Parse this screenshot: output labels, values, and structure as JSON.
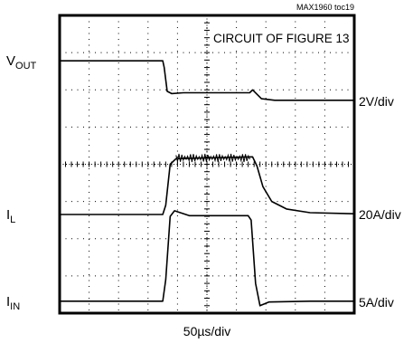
{
  "chart_data": {
    "type": "line",
    "figure_id": "MAX1960 toc19",
    "annotation": "CIRCUIT OF FIGURE 13",
    "xlabel": "50µs/div",
    "grid": true,
    "x_divisions": 10,
    "y_divisions": 8,
    "x_unit": "div",
    "traces": [
      {
        "name_main": "V",
        "name_sub": "OUT",
        "scale": "2V/div",
        "values": [
          [
            0,
            6.78
          ],
          [
            3.5,
            6.78
          ],
          [
            3.55,
            6.6
          ],
          [
            3.65,
            5.96
          ],
          [
            3.8,
            5.9
          ],
          [
            4.2,
            5.92
          ],
          [
            6.45,
            5.92
          ],
          [
            6.55,
            6.0
          ],
          [
            6.85,
            5.76
          ],
          [
            7.3,
            5.72
          ],
          [
            10,
            5.72
          ]
        ]
      },
      {
        "name_main": "I",
        "name_sub": "L",
        "scale": "20A/div",
        "values": [
          [
            0,
            2.65
          ],
          [
            3.5,
            2.65
          ],
          [
            3.6,
            2.9
          ],
          [
            3.75,
            4.0
          ],
          [
            3.95,
            4.15
          ],
          [
            6.55,
            4.2
          ],
          [
            6.7,
            3.95
          ],
          [
            6.9,
            3.4
          ],
          [
            7.2,
            3.0
          ],
          [
            7.7,
            2.8
          ],
          [
            8.5,
            2.7
          ],
          [
            10,
            2.67
          ]
        ]
      },
      {
        "name_main": "I",
        "name_sub": "IN",
        "scale": "5A/div",
        "values": [
          [
            0,
            0.32
          ],
          [
            3.5,
            0.32
          ],
          [
            3.6,
            0.9
          ],
          [
            3.75,
            2.6
          ],
          [
            3.9,
            2.75
          ],
          [
            4.4,
            2.62
          ],
          [
            6.4,
            2.62
          ],
          [
            6.5,
            2.5
          ],
          [
            6.65,
            0.8
          ],
          [
            6.8,
            0.2
          ],
          [
            7.1,
            0.3
          ],
          [
            8.5,
            0.32
          ],
          [
            10,
            0.32
          ]
        ]
      }
    ]
  }
}
